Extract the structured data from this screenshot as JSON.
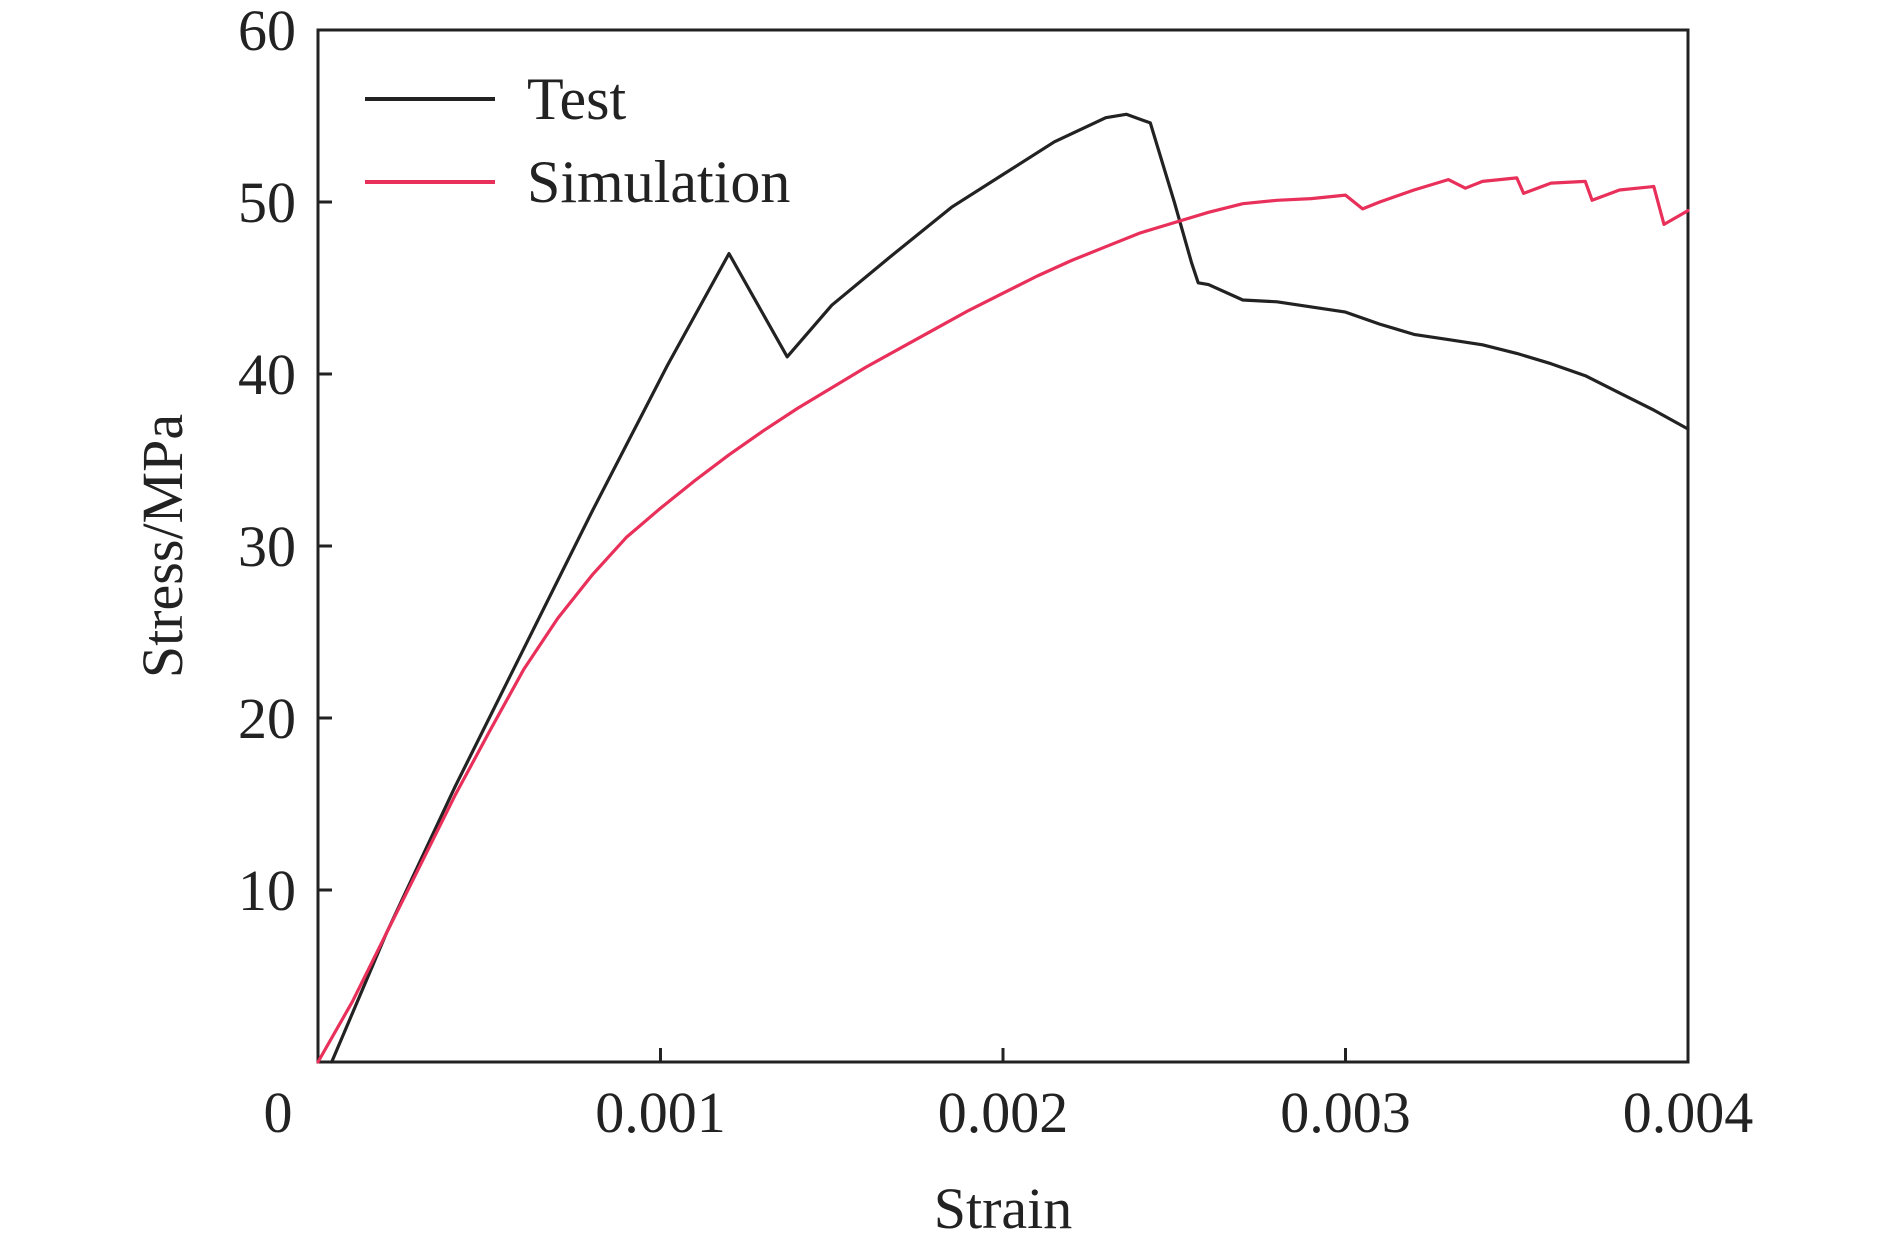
{
  "chart_data": {
    "type": "line",
    "xlabel": "Strain",
    "ylabel": "Stress/MPa",
    "xlim": [
      0,
      0.004
    ],
    "ylim": [
      0,
      60
    ],
    "x_ticks": [
      0,
      0.001,
      0.002,
      0.003,
      0.004
    ],
    "x_tick_labels": [
      "0",
      "0.001",
      "0.002",
      "0.003",
      "0.004"
    ],
    "y_ticks": [
      10,
      20,
      30,
      40,
      50,
      60
    ],
    "y_tick_labels": [
      "10",
      "20",
      "30",
      "40",
      "50",
      "60"
    ],
    "grid": false,
    "legend_position": "top-left",
    "series": [
      {
        "name": "Test",
        "color": "#222222",
        "x": [
          4e-05,
          0.0002,
          0.0004,
          0.0006,
          0.0008,
          0.00102,
          0.0012,
          0.00137,
          0.0015,
          0.00167,
          0.00185,
          0.002,
          0.00215,
          0.0023,
          0.00236,
          0.00243,
          0.0025,
          0.00255,
          0.00257,
          0.0026,
          0.0027,
          0.0028,
          0.0029,
          0.003,
          0.0031,
          0.0032,
          0.0033,
          0.0034,
          0.0035,
          0.0036,
          0.0037,
          0.0038,
          0.0039,
          0.004
        ],
        "y": [
          0,
          7.5,
          16.0,
          24.0,
          32.0,
          40.5,
          47.0,
          41.0,
          44.0,
          46.8,
          49.7,
          51.6,
          53.5,
          54.9,
          55.1,
          54.6,
          50.0,
          46.5,
          45.3,
          45.2,
          44.3,
          44.2,
          43.9,
          43.6,
          42.9,
          42.3,
          42.0,
          41.7,
          41.2,
          40.6,
          39.9,
          38.9,
          37.9,
          36.8
        ]
      },
      {
        "name": "Simulation",
        "color": "#e8305a",
        "x": [
          0,
          0.0001,
          0.0002,
          0.0003,
          0.0004,
          0.0005,
          0.0006,
          0.0007,
          0.0008,
          0.0009,
          0.001,
          0.0011,
          0.0012,
          0.0013,
          0.0014,
          0.0015,
          0.0016,
          0.0017,
          0.0018,
          0.0019,
          0.002,
          0.0021,
          0.0022,
          0.0023,
          0.0024,
          0.0025,
          0.0026,
          0.0027,
          0.0028,
          0.0029,
          0.003,
          0.00305,
          0.0031,
          0.0032,
          0.0033,
          0.00335,
          0.0034,
          0.0035,
          0.00352,
          0.0036,
          0.0037,
          0.00372,
          0.0038,
          0.0039,
          0.00393,
          0.004
        ],
        "y": [
          0,
          3.5,
          7.5,
          11.5,
          15.5,
          19.2,
          22.8,
          25.8,
          28.3,
          30.5,
          32.2,
          33.8,
          35.3,
          36.7,
          38.0,
          39.2,
          40.4,
          41.5,
          42.6,
          43.7,
          44.7,
          45.7,
          46.6,
          47.4,
          48.2,
          48.8,
          49.4,
          49.9,
          50.1,
          50.2,
          50.4,
          49.6,
          50.0,
          50.7,
          51.3,
          50.8,
          51.2,
          51.4,
          50.5,
          51.1,
          51.2,
          50.1,
          50.7,
          50.9,
          48.7,
          49.5
        ]
      }
    ]
  }
}
